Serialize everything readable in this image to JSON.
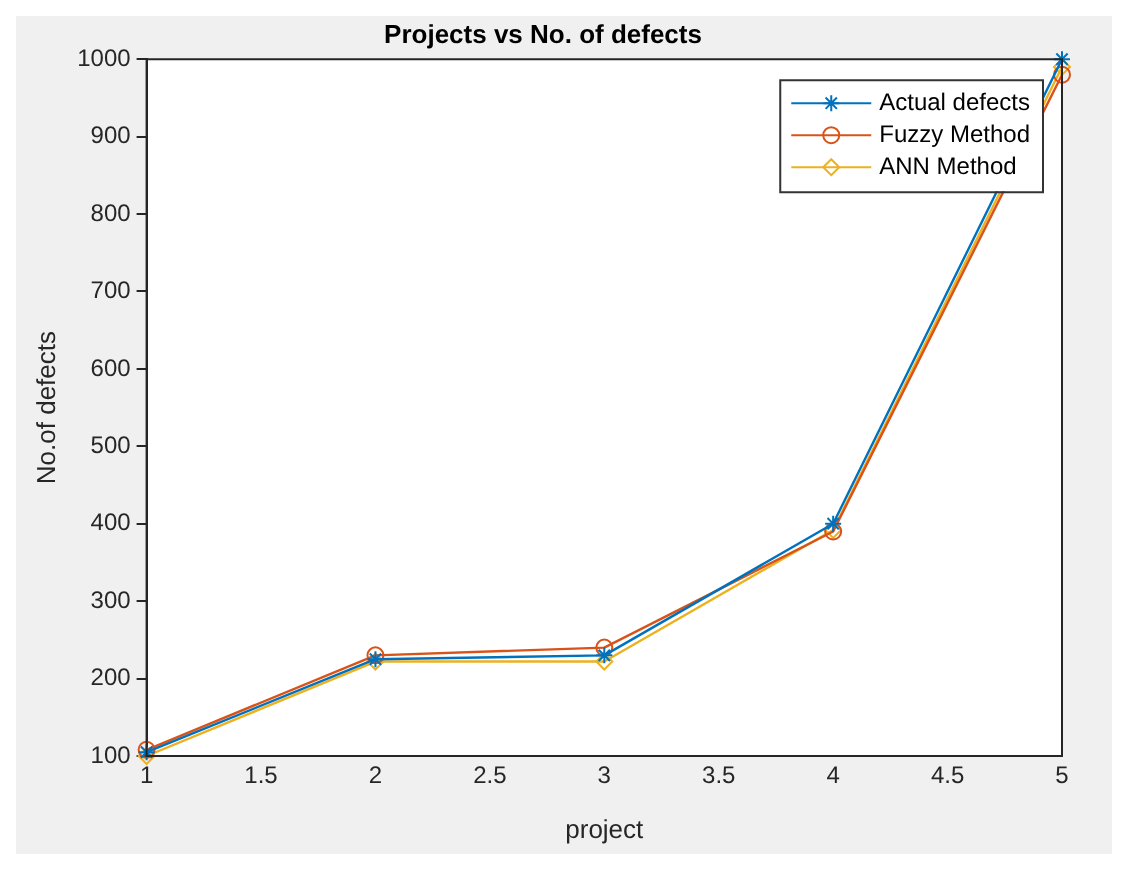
{
  "chart_data": {
    "type": "line",
    "title": "Projects vs No. of defects",
    "xlabel": "project",
    "ylabel": "No.of defects",
    "x": [
      1,
      2,
      3,
      4,
      5
    ],
    "series": [
      {
        "name": "Actual defects",
        "color": "#0072bd",
        "marker": "cross",
        "values": [
          105,
          225,
          230,
          400,
          1000
        ]
      },
      {
        "name": "Fuzzy Method",
        "color": "#d95319",
        "marker": "circle",
        "values": [
          108,
          230,
          240,
          390,
          980
        ]
      },
      {
        "name": "ANN Method",
        "color": "#edb120",
        "marker": "diamond",
        "values": [
          100,
          222,
          222,
          392,
          990
        ]
      }
    ],
    "xlim": [
      1,
      5
    ],
    "xticks": [
      1,
      1.5,
      2,
      2.5,
      3,
      3.5,
      4,
      4.5,
      5
    ],
    "ylim": [
      100,
      1000
    ],
    "yticks": [
      100,
      200,
      300,
      400,
      500,
      600,
      700,
      800,
      900,
      1000
    ],
    "grid": false,
    "legend": "top right",
    "line_style": "solid"
  }
}
